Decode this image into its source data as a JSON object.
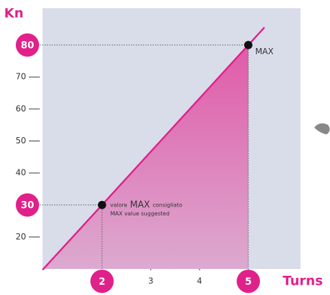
{
  "chart_data": {
    "type": "line",
    "ylabel": "Kn",
    "xlabel": "Turns",
    "xlim": [
      0.78,
      6.07
    ],
    "ylim": [
      10,
      91.5
    ],
    "xticks": [
      3,
      4
    ],
    "yticks": [
      20,
      40,
      50,
      60,
      70
    ],
    "series": [
      {
        "color": "#e0218a",
        "x": [
          0.78,
          2,
          5,
          5.33
        ],
        "values": [
          9.7,
          30,
          80,
          85.5
        ]
      }
    ],
    "points": {
      "x": [
        2,
        5
      ],
      "values": [
        30,
        80
      ],
      "color": "#e0218a"
    },
    "annotations": [
      [
        "valore",
        "MAX",
        "consigliato",
        "MAX value suggested"
      ],
      [
        "MAX"
      ]
    ]
  }
}
